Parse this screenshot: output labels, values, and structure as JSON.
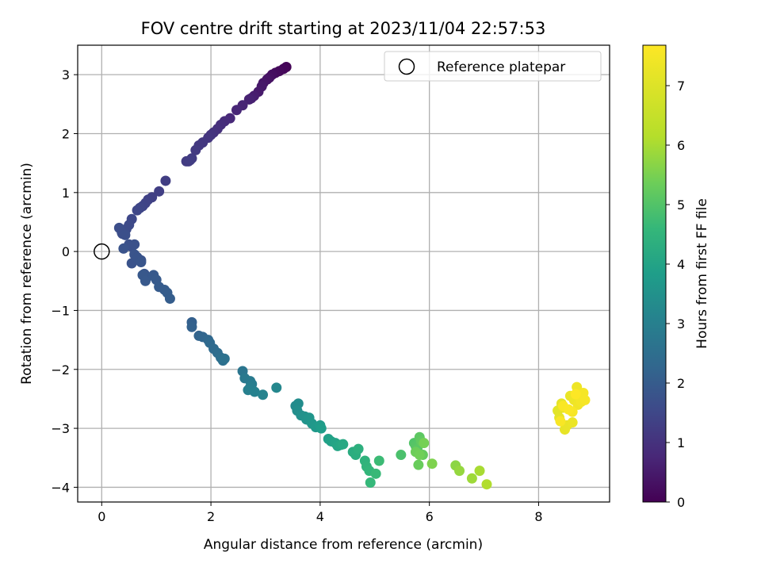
{
  "chart_data": {
    "type": "scatter",
    "title": "FOV centre drift starting at 2023/11/04 22:57:53",
    "xlabel": "Angular distance from reference (arcmin)",
    "ylabel": "Rotation from reference (arcmin)",
    "xlim": [
      -0.44,
      9.3
    ],
    "ylim": [
      -4.25,
      3.5
    ],
    "x_ticks": [
      0,
      2,
      4,
      6,
      8
    ],
    "y_ticks": [
      -4,
      -3,
      -2,
      -1,
      0,
      1,
      2,
      3
    ],
    "grid": true,
    "legend": {
      "position": "upper-right",
      "entries": [
        "Reference platepar"
      ]
    },
    "colorbar": {
      "label": "Hours from first FF file",
      "range": [
        0,
        7.68
      ],
      "ticks": [
        0,
        1,
        2,
        3,
        4,
        5,
        6,
        7
      ],
      "colormap": "viridis"
    },
    "reference_point": {
      "x": 0,
      "y": 0
    },
    "series": [
      {
        "x": [
          3.38,
          3.33,
          3.25,
          3.18,
          3.12,
          3.07,
          3.03,
          2.96,
          2.93,
          2.87,
          2.79,
          2.74,
          2.7,
          2.58,
          2.47,
          2.35,
          2.25,
          2.18,
          2.12,
          2.05,
          2.0,
          1.95,
          1.85,
          1.78,
          1.72,
          1.65,
          1.59,
          1.55,
          1.62,
          1.17,
          1.05,
          0.92,
          0.85,
          0.8,
          0.75,
          0.7,
          0.65,
          0.55,
          0.5,
          0.45,
          0.42,
          0.38,
          0.32,
          0.37,
          0.43
        ],
        "y": [
          3.13,
          3.1,
          3.06,
          3.03,
          3.0,
          2.95,
          2.92,
          2.86,
          2.8,
          2.71,
          2.64,
          2.6,
          2.58,
          2.48,
          2.4,
          2.26,
          2.21,
          2.15,
          2.08,
          2.02,
          1.98,
          1.93,
          1.85,
          1.8,
          1.72,
          1.58,
          1.53,
          1.53,
          1.55,
          1.2,
          1.02,
          0.92,
          0.88,
          0.82,
          0.77,
          0.74,
          0.7,
          0.55,
          0.45,
          0.38,
          0.33,
          0.3,
          0.4,
          0.32,
          0.28
        ],
        "hours": [
          0.05,
          0.1,
          0.15,
          0.2,
          0.25,
          0.3,
          0.35,
          0.4,
          0.45,
          0.5,
          0.55,
          0.6,
          0.65,
          0.7,
          0.75,
          0.8,
          0.85,
          0.9,
          0.95,
          1.0,
          1.05,
          1.1,
          1.12,
          1.15,
          1.18,
          1.2,
          1.22,
          1.24,
          1.25,
          1.28,
          1.3,
          1.33,
          1.36,
          1.4,
          1.43,
          1.46,
          1.49,
          1.52,
          1.55,
          1.58,
          1.61,
          1.63,
          1.65,
          1.67,
          1.69
        ]
      },
      {
        "x": [
          0.5,
          0.55,
          0.6,
          0.65,
          0.72,
          0.55,
          0.4,
          0.6,
          0.65,
          0.72,
          0.78,
          0.82,
          0.75,
          0.8,
          0.95,
          1.0,
          1.05,
          1.15,
          1.2,
          1.25
        ],
        "y": [
          0.12,
          0.08,
          0.12,
          -0.1,
          -0.15,
          -0.2,
          0.05,
          -0.05,
          -0.1,
          -0.18,
          -0.38,
          -0.45,
          -0.4,
          -0.5,
          -0.4,
          -0.48,
          -0.6,
          -0.65,
          -0.7,
          -0.8
        ],
        "hours": [
          1.7,
          1.72,
          1.73,
          1.75,
          1.77,
          1.78,
          1.79,
          1.8,
          1.82,
          1.84,
          1.86,
          1.88,
          1.9,
          1.92,
          1.94,
          1.96,
          1.98,
          2.0,
          2.02,
          2.04
        ]
      },
      {
        "x": [
          1.65,
          1.65,
          1.78,
          1.85,
          1.95,
          1.98,
          2.05,
          2.12,
          2.18,
          2.22,
          2.25,
          2.58,
          2.62,
          2.72,
          2.75,
          2.72,
          2.68,
          2.8,
          2.95,
          3.2,
          3.55,
          3.6,
          3.58,
          3.65,
          3.72,
          3.75,
          3.8,
          3.85,
          3.92,
          4.0,
          4.02,
          4.15,
          4.2,
          4.28,
          4.32,
          4.38,
          4.42,
          4.6,
          4.65,
          4.7,
          4.82,
          4.85,
          4.9,
          4.92,
          5.02,
          5.08
        ],
        "y": [
          -1.2,
          -1.28,
          -1.43,
          -1.45,
          -1.5,
          -1.55,
          -1.65,
          -1.72,
          -1.8,
          -1.85,
          -1.82,
          -2.03,
          -2.15,
          -2.2,
          -2.25,
          -2.3,
          -2.35,
          -2.38,
          -2.43,
          -2.31,
          -2.62,
          -2.58,
          -2.7,
          -2.78,
          -2.8,
          -2.85,
          -2.82,
          -2.92,
          -2.98,
          -2.95,
          -3.0,
          -3.18,
          -3.22,
          -3.25,
          -3.3,
          -3.28,
          -3.27,
          -3.4,
          -3.45,
          -3.35,
          -3.55,
          -3.65,
          -3.72,
          -3.92,
          -3.77,
          -3.55
        ],
        "hours": [
          2.1,
          2.15,
          2.2,
          2.25,
          2.3,
          2.35,
          2.4,
          2.45,
          2.5,
          2.55,
          2.6,
          2.7,
          2.8,
          2.85,
          2.9,
          2.95,
          3.0,
          3.05,
          3.1,
          3.2,
          3.3,
          3.35,
          3.4,
          3.45,
          3.5,
          3.55,
          3.6,
          3.65,
          3.7,
          3.75,
          3.8,
          3.9,
          3.95,
          4.0,
          4.05,
          4.1,
          4.15,
          4.25,
          4.3,
          4.35,
          4.45,
          4.5,
          4.55,
          4.6,
          4.65,
          4.7
        ]
      },
      {
        "x": [
          5.48,
          5.72,
          5.75,
          5.78,
          5.82,
          5.85,
          5.88,
          5.8,
          5.75,
          5.82,
          5.9,
          6.05,
          6.48,
          6.55,
          6.78,
          6.92,
          7.05
        ],
        "y": [
          -3.45,
          -3.25,
          -3.3,
          -3.35,
          -3.15,
          -3.22,
          -3.45,
          -3.62,
          -3.4,
          -3.45,
          -3.25,
          -3.6,
          -3.63,
          -3.72,
          -3.85,
          -3.72,
          -3.95
        ],
        "hours": [
          4.9,
          5.0,
          5.05,
          5.1,
          5.15,
          5.2,
          5.25,
          5.3,
          5.35,
          5.4,
          5.45,
          5.55,
          5.7,
          5.8,
          5.9,
          6.0,
          6.1
        ]
      },
      {
        "x": [
          8.35,
          8.38,
          8.42,
          8.45,
          8.48,
          8.52,
          8.58,
          8.62,
          8.65,
          8.7,
          8.72,
          8.75,
          8.78,
          8.82,
          8.85,
          8.62,
          8.4,
          8.45,
          8.55,
          8.68
        ],
        "y": [
          -2.7,
          -2.82,
          -2.58,
          -2.65,
          -3.02,
          -2.95,
          -2.45,
          -2.9,
          -2.52,
          -2.3,
          -2.6,
          -2.48,
          -2.55,
          -2.4,
          -2.52,
          -2.72,
          -2.88,
          -2.62,
          -2.68,
          -2.42
        ],
        "hours": [
          7.1,
          7.15,
          7.18,
          7.2,
          7.22,
          7.25,
          7.28,
          7.3,
          7.33,
          7.36,
          7.4,
          7.43,
          7.46,
          7.5,
          7.53,
          7.56,
          7.58,
          7.6,
          7.62,
          7.65
        ]
      }
    ]
  },
  "colors": {
    "grid": "#b0b0b0",
    "axes": "#000000"
  }
}
